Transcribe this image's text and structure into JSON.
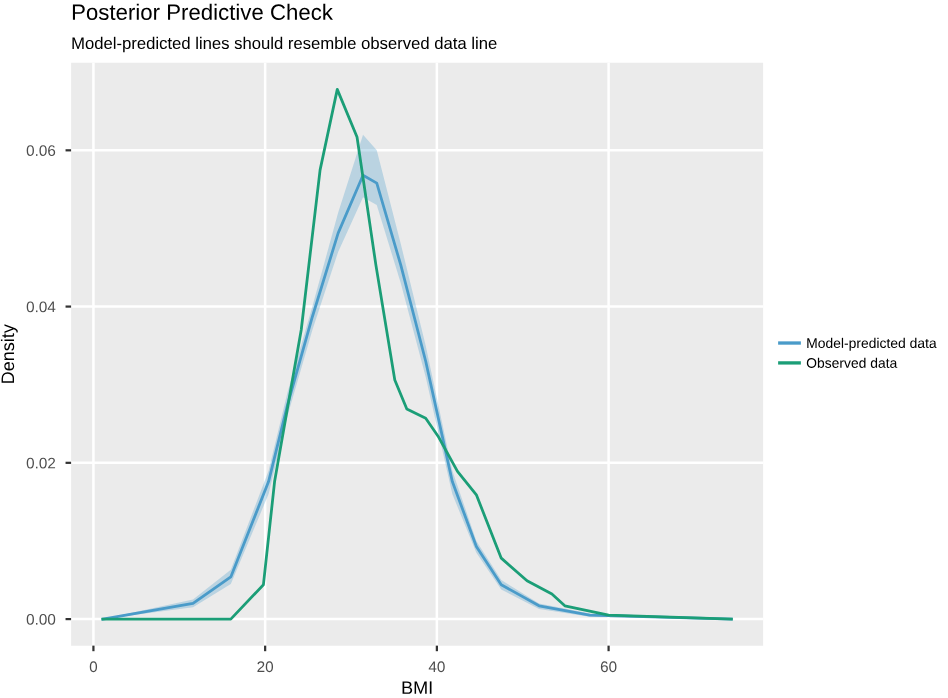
{
  "chart_data": {
    "type": "line",
    "title": "Posterior Predictive Check",
    "subtitle": "Model-predicted lines should resemble observed data line",
    "xlabel": "BMI",
    "ylabel": "Density",
    "xlim": [
      -2.6,
      78
    ],
    "xticks": [
      0,
      20,
      40,
      60
    ],
    "ylim": [
      -0.0034,
      0.0712
    ],
    "yticks": [
      {
        "value": 0,
        "label": "0.00"
      },
      {
        "value": 0.02,
        "label": "0.02"
      },
      {
        "value": 0.04,
        "label": "0.04"
      },
      {
        "value": 0.06,
        "label": "0.06"
      }
    ],
    "grid": true,
    "legend": "right",
    "marker": "none",
    "line_style": "solid",
    "series": [
      {
        "name": "Model-predicted data",
        "color": "#4a9bc9",
        "x": [
          1.1,
          11.6,
          16,
          20.4,
          22.6,
          25.5,
          28.5,
          31.4,
          33,
          35.8,
          38.7,
          41.8,
          44.6,
          47.5,
          51.9,
          57.8,
          74.3
        ],
        "values": [
          0,
          0.002,
          0.0054,
          0.0176,
          0.0274,
          0.0387,
          0.0494,
          0.0568,
          0.0558,
          0.0453,
          0.033,
          0.0176,
          0.0093,
          0.0044,
          0.0017,
          0.0005,
          0
        ],
        "lower": [
          0,
          0.0015,
          0.0045,
          0.016,
          0.026,
          0.037,
          0.047,
          0.054,
          0.053,
          0.043,
          0.031,
          0.016,
          0.0085,
          0.0038,
          0.0013,
          0.0003,
          0
        ],
        "upper": [
          0,
          0.0025,
          0.0063,
          0.019,
          0.029,
          0.04,
          0.052,
          0.062,
          0.06,
          0.048,
          0.035,
          0.019,
          0.01,
          0.005,
          0.002,
          0.0007,
          0
        ]
      },
      {
        "name": "Observed data",
        "color": "#1b9e77",
        "x": [
          1.1,
          16,
          19.8,
          21.1,
          24.2,
          26.4,
          28.4,
          30.7,
          32.9,
          35.1,
          36.5,
          38.7,
          40.2,
          42.4,
          44.6,
          47.5,
          50.5,
          53.4,
          54.9,
          60,
          74.3
        ],
        "values": [
          0,
          0,
          0.0044,
          0.0176,
          0.037,
          0.0575,
          0.0678,
          0.0617,
          0.0453,
          0.0306,
          0.0269,
          0.0257,
          0.0233,
          0.0189,
          0.0159,
          0.0078,
          0.0049,
          0.0032,
          0.0017,
          0.0005,
          0
        ]
      }
    ]
  }
}
